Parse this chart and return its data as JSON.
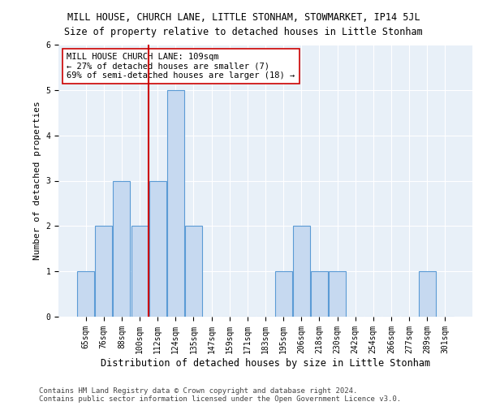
{
  "title": "MILL HOUSE, CHURCH LANE, LITTLE STONHAM, STOWMARKET, IP14 5JL",
  "subtitle": "Size of property relative to detached houses in Little Stonham",
  "xlabel": "Distribution of detached houses by size in Little Stonham",
  "ylabel": "Number of detached properties",
  "categories": [
    "65sqm",
    "76sqm",
    "88sqm",
    "100sqm",
    "112sqm",
    "124sqm",
    "135sqm",
    "147sqm",
    "159sqm",
    "171sqm",
    "183sqm",
    "195sqm",
    "206sqm",
    "218sqm",
    "230sqm",
    "242sqm",
    "254sqm",
    "266sqm",
    "277sqm",
    "289sqm",
    "301sqm"
  ],
  "values": [
    1,
    2,
    3,
    2,
    3,
    5,
    2,
    0,
    0,
    0,
    0,
    1,
    2,
    1,
    1,
    0,
    0,
    0,
    0,
    1,
    0
  ],
  "bar_color": "#c6d9f0",
  "bar_edge_color": "#5b9bd5",
  "red_line_index": 4,
  "red_line_color": "#cc0000",
  "annotation_text": "MILL HOUSE CHURCH LANE: 109sqm\n← 27% of detached houses are smaller (7)\n69% of semi-detached houses are larger (18) →",
  "annotation_box_color": "#ffffff",
  "annotation_box_edge": "#cc0000",
  "ylim": [
    0,
    6
  ],
  "yticks": [
    0,
    1,
    2,
    3,
    4,
    5,
    6
  ],
  "footnote1": "Contains HM Land Registry data © Crown copyright and database right 2024.",
  "footnote2": "Contains public sector information licensed under the Open Government Licence v3.0.",
  "bg_color": "#ffffff",
  "plot_bg_color": "#e8f0f8",
  "grid_color": "#ffffff",
  "title_fontsize": 8.5,
  "subtitle_fontsize": 8.5,
  "xlabel_fontsize": 8.5,
  "ylabel_fontsize": 8,
  "tick_fontsize": 7,
  "annotation_fontsize": 7.5,
  "footnote_fontsize": 6.5
}
